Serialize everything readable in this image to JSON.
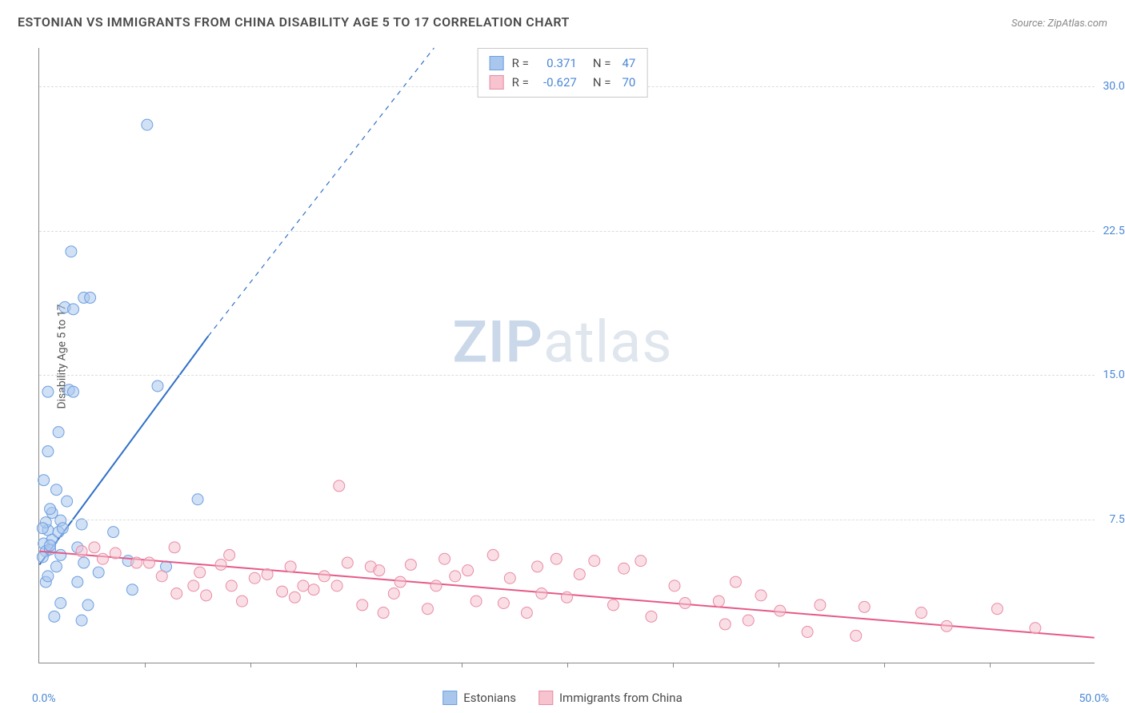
{
  "title": "ESTONIAN VS IMMIGRANTS FROM CHINA DISABILITY AGE 5 TO 17 CORRELATION CHART",
  "source": "Source: ZipAtlas.com",
  "y_axis_label": "Disability Age 5 to 17",
  "watermark_zip": "ZIP",
  "watermark_atlas": "atlas",
  "chart": {
    "type": "scatter",
    "background_color": "#ffffff",
    "grid_color": "#dddddd",
    "axis_color": "#888888",
    "xlim": [
      0,
      50
    ],
    "ylim": [
      0,
      32
    ],
    "x_origin_label": "0.0%",
    "x_max_label": "50.0%",
    "y_ticks": [
      {
        "value": 7.5,
        "label": "7.5%"
      },
      {
        "value": 15.0,
        "label": "15.0%"
      },
      {
        "value": 22.5,
        "label": "22.5%"
      },
      {
        "value": 30.0,
        "label": "30.0%"
      }
    ],
    "x_tick_positions": [
      5,
      10,
      15,
      20,
      25,
      30,
      35,
      40,
      45
    ],
    "label_color": "#4a88d6",
    "label_fontsize": 14,
    "title_fontsize": 16,
    "title_color": "#4a4a4a",
    "marker_radius": 7,
    "marker_opacity": 0.55,
    "line_width": 2
  },
  "series": [
    {
      "key": "estonians",
      "label": "Estonians",
      "fill_color": "#a9c7ec",
      "stroke_color": "#6d9fe0",
      "line_color": "#2f6fc7",
      "R_label": "R =",
      "R": "0.371",
      "N_label": "N =",
      "N": "47",
      "trend": {
        "x1": 0,
        "y1": 5.1,
        "x2": 8.0,
        "y2": 17.0,
        "dash_x2": 18.7,
        "dash_y2": 32
      },
      "points": [
        [
          0.2,
          6.2
        ],
        [
          0.3,
          5.8
        ],
        [
          0.4,
          6.9
        ],
        [
          0.6,
          7.8
        ],
        [
          0.8,
          5.0
        ],
        [
          0.3,
          4.2
        ],
        [
          1.0,
          7.4
        ],
        [
          1.3,
          8.4
        ],
        [
          0.5,
          8.0
        ],
        [
          0.2,
          9.5
        ],
        [
          0.4,
          11.0
        ],
        [
          0.8,
          9.0
        ],
        [
          1.8,
          6.0
        ],
        [
          2.1,
          5.2
        ],
        [
          2.0,
          7.2
        ],
        [
          0.9,
          12.0
        ],
        [
          1.4,
          14.2
        ],
        [
          1.6,
          14.1
        ],
        [
          0.4,
          14.1
        ],
        [
          1.2,
          18.5
        ],
        [
          1.6,
          18.4
        ],
        [
          2.1,
          19.0
        ],
        [
          2.4,
          19.0
        ],
        [
          1.5,
          21.4
        ],
        [
          5.1,
          28.0
        ],
        [
          5.6,
          14.4
        ],
        [
          3.5,
          6.8
        ],
        [
          4.4,
          3.8
        ],
        [
          4.2,
          5.3
        ],
        [
          6.0,
          5.0
        ],
        [
          7.5,
          8.5
        ],
        [
          1.0,
          3.1
        ],
        [
          2.3,
          3.0
        ],
        [
          2.0,
          2.2
        ],
        [
          0.7,
          2.4
        ],
        [
          0.5,
          5.9
        ],
        [
          0.6,
          6.4
        ],
        [
          1.8,
          4.2
        ],
        [
          2.8,
          4.7
        ],
        [
          0.9,
          6.8
        ],
        [
          1.1,
          7.0
        ],
        [
          0.3,
          7.3
        ],
        [
          1.0,
          5.6
        ],
        [
          0.4,
          4.5
        ],
        [
          0.15,
          5.5
        ],
        [
          0.15,
          7.0
        ],
        [
          0.5,
          6.1
        ]
      ]
    },
    {
      "key": "immigrants_china",
      "label": "Immigrants from China",
      "fill_color": "#f6c3cf",
      "stroke_color": "#e98ba4",
      "line_color": "#e65a87",
      "R_label": "R =",
      "R": "-0.627",
      "N_label": "N =",
      "N": "70",
      "trend": {
        "x1": 0,
        "y1": 5.8,
        "x2": 50,
        "y2": 1.3,
        "dash_x2": 50,
        "dash_y2": 1.3
      },
      "points": [
        [
          2.0,
          5.8
        ],
        [
          2.6,
          6.0
        ],
        [
          3.0,
          5.4
        ],
        [
          3.6,
          5.7
        ],
        [
          4.6,
          5.2
        ],
        [
          5.2,
          5.2
        ],
        [
          5.8,
          4.5
        ],
        [
          6.4,
          6.0
        ],
        [
          6.5,
          3.6
        ],
        [
          7.3,
          4.0
        ],
        [
          7.6,
          4.7
        ],
        [
          7.9,
          3.5
        ],
        [
          8.6,
          5.1
        ],
        [
          9.1,
          4.0
        ],
        [
          9.0,
          5.6
        ],
        [
          9.6,
          3.2
        ],
        [
          10.2,
          4.4
        ],
        [
          10.8,
          4.6
        ],
        [
          11.5,
          3.7
        ],
        [
          11.9,
          5.0
        ],
        [
          12.1,
          3.4
        ],
        [
          12.5,
          4.0
        ],
        [
          13.0,
          3.8
        ],
        [
          13.5,
          4.5
        ],
        [
          14.1,
          4.0
        ],
        [
          14.2,
          9.2
        ],
        [
          14.6,
          5.2
        ],
        [
          15.3,
          3.0
        ],
        [
          15.7,
          5.0
        ],
        [
          16.3,
          2.6
        ],
        [
          16.8,
          3.6
        ],
        [
          17.1,
          4.2
        ],
        [
          17.6,
          5.1
        ],
        [
          18.4,
          2.8
        ],
        [
          18.8,
          4.0
        ],
        [
          19.2,
          5.4
        ],
        [
          19.7,
          4.5
        ],
        [
          20.3,
          4.8
        ],
        [
          20.7,
          3.2
        ],
        [
          21.5,
          5.6
        ],
        [
          22.0,
          3.1
        ],
        [
          22.3,
          4.4
        ],
        [
          23.1,
          2.6
        ],
        [
          23.6,
          5.0
        ],
        [
          24.5,
          5.4
        ],
        [
          25.0,
          3.4
        ],
        [
          25.6,
          4.6
        ],
        [
          26.3,
          5.3
        ],
        [
          27.2,
          3.0
        ],
        [
          27.7,
          4.9
        ],
        [
          28.5,
          5.3
        ],
        [
          29.0,
          2.4
        ],
        [
          30.1,
          4.0
        ],
        [
          30.6,
          3.1
        ],
        [
          32.2,
          3.2
        ],
        [
          32.5,
          2.0
        ],
        [
          33.6,
          2.2
        ],
        [
          34.2,
          3.5
        ],
        [
          35.1,
          2.7
        ],
        [
          36.4,
          1.6
        ],
        [
          37.0,
          3.0
        ],
        [
          38.7,
          1.4
        ],
        [
          39.1,
          2.9
        ],
        [
          33.0,
          4.2
        ],
        [
          41.8,
          2.6
        ],
        [
          43.0,
          1.9
        ],
        [
          45.4,
          2.8
        ],
        [
          47.2,
          1.8
        ],
        [
          23.8,
          3.6
        ],
        [
          16.1,
          4.8
        ]
      ]
    }
  ]
}
